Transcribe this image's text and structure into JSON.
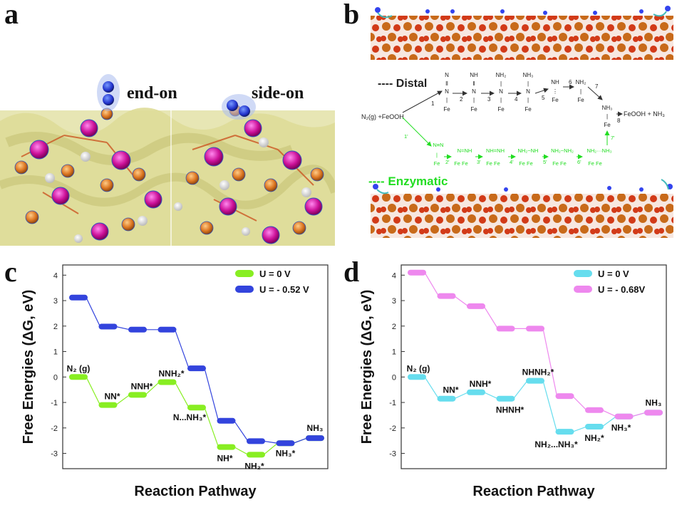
{
  "panels": {
    "a": {
      "letter": "a",
      "end_on_label": "end-on",
      "side_on_label": "side-on"
    },
    "b": {
      "letter": "b",
      "distal_label": "---- Distal",
      "enzymatic_label": "---- Enzymatic",
      "reactant": "N₂(g) +FeOOH",
      "product": "FeOOH + NH₃",
      "distal_steps": [
        "1",
        "2",
        "3",
        "4",
        "5",
        "6",
        "7",
        "8"
      ],
      "enzymatic_steps": [
        "1'",
        "2'",
        "3'",
        "4'",
        "5'",
        "6'",
        "7'"
      ],
      "colors": {
        "distal": "#222222",
        "enzymatic": "#22dd22"
      }
    }
  },
  "chart_data": [
    {
      "panel": "c",
      "type": "line",
      "xlabel": "Reaction Pathway",
      "ylabel": "Free Energies (ΔG, eV)",
      "ylim": [
        -3.6,
        4.4
      ],
      "yticks": [
        "4",
        "3",
        "2",
        "1",
        "0",
        "-1",
        "-2",
        "-3"
      ],
      "legend_position": "top-right",
      "series": [
        {
          "name": "U = 0 V",
          "color": "#88ee22",
          "values": [
            0,
            -1.1,
            -0.7,
            -0.2,
            -1.2,
            -2.75,
            -3.05,
            -2.6,
            -2.4
          ],
          "labels": [
            "N₂ (g)",
            "NN*",
            "NNH*",
            "NNH₂*",
            "N...NH₃*",
            "NH*",
            "NH₂*",
            "NH₃*",
            "NH₃"
          ]
        },
        {
          "name": "U = - 0.52 V",
          "color": "#3344dd",
          "values": [
            3.12,
            1.98,
            1.86,
            1.86,
            0.34,
            -1.72,
            -2.52,
            -2.6,
            -2.4
          ]
        }
      ]
    },
    {
      "panel": "d",
      "type": "line",
      "xlabel": "Reaction Pathway",
      "ylabel": "Free Energies (ΔG, eV)",
      "ylim": [
        -3.6,
        4.4
      ],
      "yticks": [
        "4",
        "3",
        "2",
        "1",
        "0",
        "-1",
        "-2",
        "-3"
      ],
      "legend_position": "top-right",
      "series": [
        {
          "name": "U = 0 V",
          "color": "#66ddee",
          "values": [
            0,
            -0.85,
            -0.6,
            -0.85,
            -0.15,
            -2.15,
            -1.95,
            -1.55,
            -1.4
          ],
          "labels": [
            "N₂ (g)",
            "NN*",
            "NNH*",
            "NHNH*",
            "NHNH₂*",
            "NH₂...NH₃*",
            "NH₂*",
            "NH₃*",
            "NH₃"
          ]
        },
        {
          "name": "U = - 0.68V",
          "color": "#ee88ee",
          "values": [
            4.1,
            3.18,
            2.78,
            1.9,
            1.9,
            -0.75,
            -1.3,
            -1.55,
            -1.4
          ]
        }
      ]
    }
  ]
}
